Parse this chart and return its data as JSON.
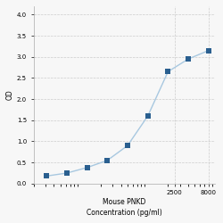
{
  "x": [
    31.25,
    62.5,
    125,
    250,
    500,
    1000,
    2000,
    4000,
    8000
  ],
  "y": [
    0.18,
    0.25,
    0.38,
    0.55,
    0.9,
    1.6,
    2.65,
    2.95,
    3.15
  ],
  "line_color": "#a8c8e0",
  "marker_color": "#2a5f8f",
  "marker_size": 5,
  "line_width": 1.0,
  "xlabel_line1": "Mouse PNKD",
  "xlabel_line2": "Concentration (pg/ml)",
  "ylabel": "OD",
  "xlim_log": [
    1.3,
    4.0
  ],
  "ylim": [
    0.0,
    4.2
  ],
  "yticks": [
    0,
    0.5,
    1.0,
    1.5,
    2.0,
    2.5,
    3.0,
    3.5,
    4.0
  ],
  "xtick_vals": [
    2500,
    8000
  ],
  "xtick_labels": [
    "2500",
    "8000"
  ],
  "grid_color": "#cccccc",
  "bg_color": "#f7f7f7",
  "tick_fontsize": 5,
  "label_fontsize": 5.5
}
